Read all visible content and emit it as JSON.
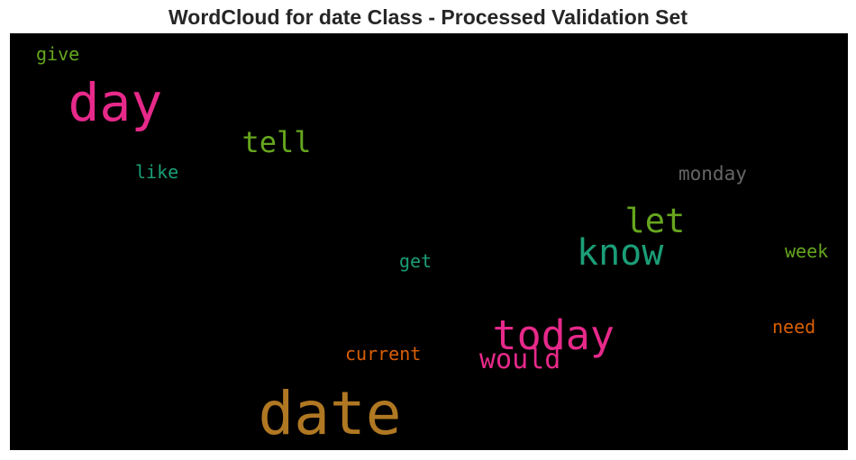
{
  "chart_data": {
    "type": "wordcloud",
    "title": "WordCloud for date Class - Processed Validation Set",
    "background": "#000000",
    "words": [
      {
        "text": "date",
        "weight": 1.0,
        "color": "#b07822"
      },
      {
        "text": "day",
        "weight": 0.9,
        "color": "#e7298a"
      },
      {
        "text": "today",
        "weight": 0.7,
        "color": "#e7298a"
      },
      {
        "text": "know",
        "weight": 0.62,
        "color": "#1b9e77"
      },
      {
        "text": "let",
        "weight": 0.58,
        "color": "#66a61e"
      },
      {
        "text": "tell",
        "weight": 0.5,
        "color": "#66a61e"
      },
      {
        "text": "would",
        "weight": 0.47,
        "color": "#e7298a"
      },
      {
        "text": "monday",
        "weight": 0.32,
        "color": "#666666"
      },
      {
        "text": "current",
        "weight": 0.3,
        "color": "#d95f02"
      },
      {
        "text": "need",
        "weight": 0.3,
        "color": "#d95f02"
      },
      {
        "text": "week",
        "weight": 0.29,
        "color": "#66a61e"
      },
      {
        "text": "get",
        "weight": 0.29,
        "color": "#1b9e77"
      },
      {
        "text": "like",
        "weight": 0.29,
        "color": "#1b9e77"
      },
      {
        "text": "give",
        "weight": 0.29,
        "color": "#66a61e"
      }
    ]
  }
}
